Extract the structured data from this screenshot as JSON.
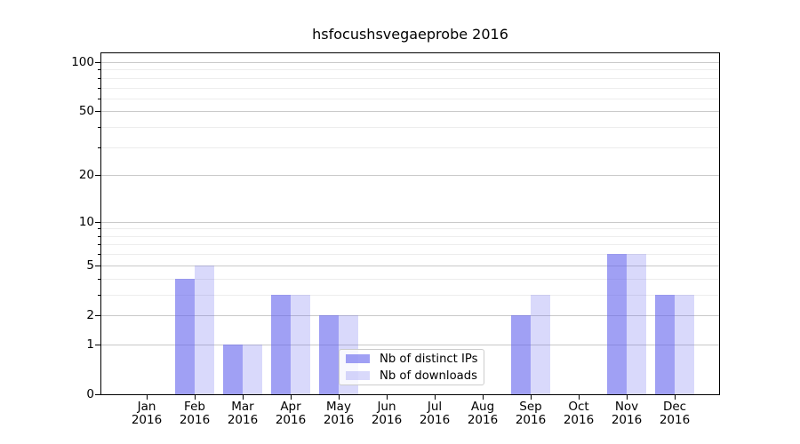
{
  "figure": {
    "title": "hsfocushsvegaeprobe 2016",
    "background": "#ffffff"
  },
  "chart_data": {
    "type": "bar",
    "title": "hsfocushsvegaeprobe 2016",
    "categories": [
      "Jan 2016",
      "Feb 2016",
      "Mar 2016",
      "Apr 2016",
      "May 2016",
      "Jun 2016",
      "Jul 2016",
      "Aug 2016",
      "Sep 2016",
      "Oct 2016",
      "Nov 2016",
      "Dec 2016"
    ],
    "series": [
      {
        "name": "Nb of distinct IPs",
        "color": "rgba(102,102,238,0.62)",
        "values": [
          0,
          4,
          1,
          3,
          2,
          0,
          0,
          0,
          2,
          0,
          6,
          3
        ]
      },
      {
        "name": "Nb of downloads",
        "color": "rgba(102,102,238,0.25)",
        "values": [
          0,
          5,
          1,
          3,
          2,
          0,
          0,
          0,
          3,
          0,
          6,
          3
        ]
      }
    ],
    "xlabel": "",
    "ylabel": "",
    "y_scale": "log1p",
    "y_major_ticks": [
      0,
      1,
      2,
      5,
      10,
      20,
      50,
      100
    ],
    "y_minor_ticks": [
      3,
      4,
      6,
      7,
      8,
      9,
      30,
      40,
      60,
      70,
      80,
      90
    ],
    "ylim": [
      0,
      115
    ],
    "grid": "both",
    "legend_position": "lower center",
    "colors": {
      "bar_base": "#6666ee",
      "major_grid": "#c9c9c9",
      "minor_grid": "#ededed",
      "axis": "#000000"
    }
  },
  "legend": {
    "items": [
      "Nb of distinct IPs",
      "Nb of downloads"
    ]
  }
}
